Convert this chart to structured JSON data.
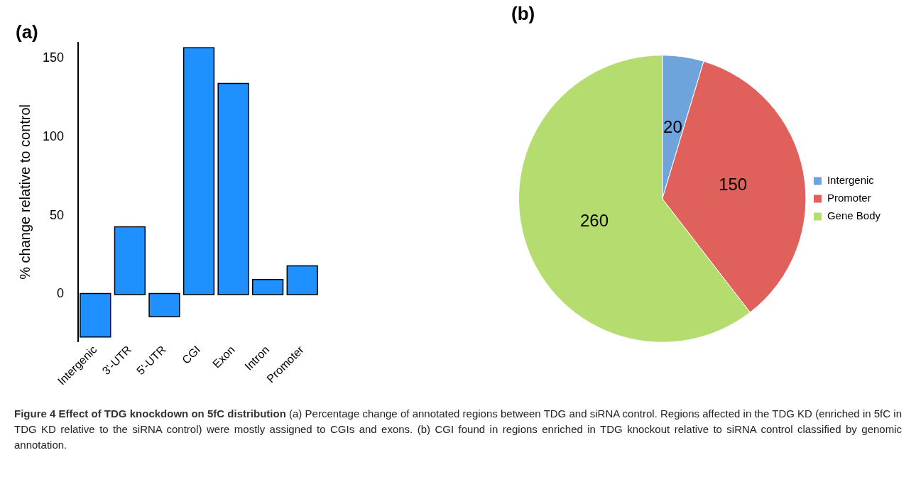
{
  "chart_data": [
    {
      "type": "bar",
      "title": "(a)",
      "ylabel": "% change relative to control",
      "categories": [
        "Intergenic",
        "3'-UTR",
        "5'-UTR",
        "CGI",
        "Exon",
        "Intron",
        "Promoter"
      ],
      "values": [
        -27,
        42.5,
        -14,
        156.4,
        133.7,
        8.9,
        17.6
      ],
      "color": "#1e90ff",
      "ylim": [
        -30,
        160
      ],
      "yticks": [
        0,
        50,
        100,
        150
      ],
      "grid": false,
      "legend": false,
      "annotations": [
        "Figure 4 Effect of TDG knockdown on 5fC distribution",
        "(a) Percentage change of annotated regions between TDG and siRNA control. Regions affected in the TDG KD (enriched in 5fC in TDG KD relative to the siRNA control) were mostly assigned to CGIs and exons.",
        "(b) CGI found in regions enriched in TDG knockout relative to siRNA control classified by genomic annotation."
      ]
    },
    {
      "type": "pie",
      "title": "(b)",
      "categories": [
        "Intergenic",
        "Promoter",
        "Gene Body"
      ],
      "values": [
        20,
        150,
        260
      ],
      "colors": [
        "#6fa3dc",
        "#e0605c",
        "#b4dc6e"
      ],
      "data_labels": true,
      "legend": "right"
    }
  ]
}
